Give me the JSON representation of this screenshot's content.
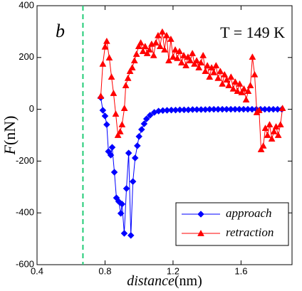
{
  "chart_data": {
    "type": "line",
    "annotations": [
      "b",
      "T = 149 K"
    ],
    "x_label": {
      "name": "distance",
      "unit": "(nm)"
    },
    "y_label": {
      "name": "F",
      "unit": "(nN)"
    },
    "xlim": [
      0.4,
      1.9
    ],
    "xticks": [
      0.4,
      0.8,
      1.2,
      1.6
    ],
    "ylim": [
      -600,
      400
    ],
    "yticks": [
      -600,
      -400,
      -200,
      0,
      200,
      400
    ],
    "vline": {
      "x": 0.67,
      "color": "#22cc77"
    },
    "legend": "lower right",
    "series": [
      {
        "name": "approach",
        "color": "#0000ff",
        "marker": "diamond",
        "x": [
          0.775,
          0.787,
          0.8,
          0.81,
          0.82,
          0.834,
          0.842,
          0.855,
          0.867,
          0.88,
          0.893,
          0.9,
          0.913,
          0.926,
          0.939,
          0.952,
          0.964,
          0.977,
          0.99,
          1.0,
          1.015,
          1.03,
          1.044,
          1.065,
          1.09,
          1.115,
          1.14,
          1.165,
          1.19,
          1.215,
          1.24,
          1.265,
          1.29,
          1.315,
          1.34,
          1.365,
          1.39,
          1.415,
          1.44,
          1.465,
          1.49,
          1.515,
          1.54,
          1.565,
          1.59,
          1.615,
          1.64,
          1.665,
          1.69,
          1.715,
          1.74,
          1.765,
          1.79,
          1.815,
          1.84
        ],
        "values": [
          45,
          -4,
          -26,
          -59,
          -163,
          -177,
          -147,
          -243,
          -342,
          -356,
          -402,
          -366,
          -479,
          -306,
          -169,
          -487,
          -279,
          -188,
          -141,
          -105,
          -78,
          -56,
          -37,
          -23,
          -12,
          -7,
          -5,
          -4,
          -3,
          -3,
          -2,
          -2,
          -2,
          -1,
          -1,
          -1,
          -1,
          0,
          0,
          0,
          0,
          0,
          0,
          0,
          0,
          0,
          0,
          0,
          0,
          0,
          0,
          0,
          0,
          0,
          0
        ]
      },
      {
        "name": "retraction",
        "color": "#ff0000",
        "marker": "triangle",
        "x": [
          0.775,
          0.787,
          0.8,
          0.81,
          0.825,
          0.838,
          0.85,
          0.863,
          0.876,
          0.889,
          0.9,
          0.914,
          0.922,
          0.935,
          0.947,
          0.96,
          0.973,
          0.985,
          0.998,
          1.01,
          1.023,
          1.036,
          1.048,
          1.061,
          1.074,
          1.086,
          1.099,
          1.112,
          1.124,
          1.137,
          1.15,
          1.162,
          1.175,
          1.187,
          1.2,
          1.213,
          1.225,
          1.238,
          1.25,
          1.263,
          1.276,
          1.288,
          1.301,
          1.314,
          1.326,
          1.339,
          1.352,
          1.364,
          1.377,
          1.39,
          1.402,
          1.415,
          1.427,
          1.44,
          1.453,
          1.465,
          1.478,
          1.49,
          1.503,
          1.516,
          1.528,
          1.541,
          1.554,
          1.566,
          1.579,
          1.592,
          1.604,
          1.617,
          1.63,
          1.642,
          1.655,
          1.667,
          1.68,
          1.693,
          1.706,
          1.718,
          1.731,
          1.743,
          1.756,
          1.768,
          1.781,
          1.794,
          1.806,
          1.819,
          1.832,
          1.844
        ],
        "values": [
          51,
          175,
          241,
          263,
          199,
          125,
          62,
          -18,
          -100,
          -86,
          -59,
          4,
          92,
          120,
          147,
          161,
          188,
          213,
          243,
          257,
          224,
          243,
          216,
          230,
          252,
          208,
          257,
          285,
          243,
          299,
          230,
          285,
          188,
          271,
          202,
          230,
          197,
          224,
          180,
          208,
          169,
          202,
          188,
          216,
          175,
          188,
          161,
          180,
          208,
          147,
          169,
          125,
          161,
          142,
          169,
          120,
          147,
          98,
          134,
          114,
          92,
          125,
          79,
          106,
          70,
          98,
          65,
          79,
          37,
          70,
          92,
          202,
          134,
          -12,
          -4,
          -155,
          -141,
          -73,
          -100,
          -59,
          -114,
          -86,
          -67,
          -100,
          -59,
          4
        ]
      }
    ]
  }
}
